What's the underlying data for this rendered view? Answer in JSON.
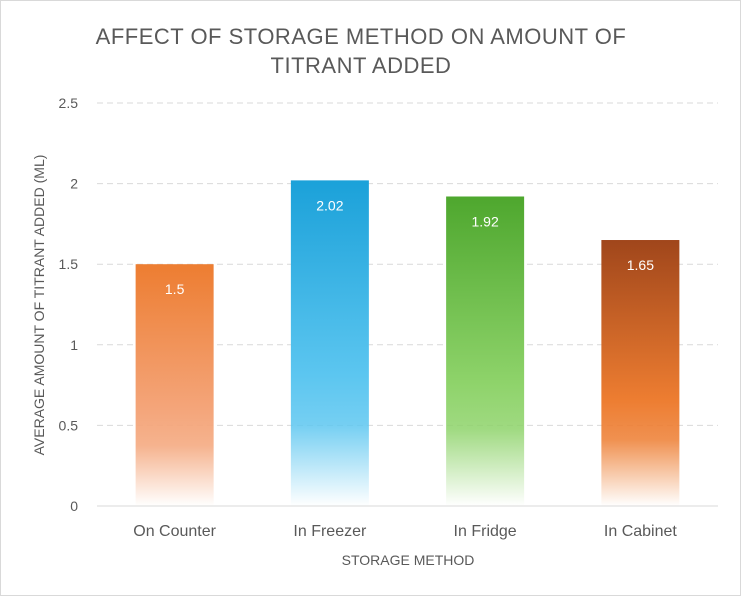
{
  "chart_data": {
    "type": "bar",
    "title_lines": [
      "AFFECT OF STORAGE METHOD ON AMOUNT OF",
      "TITRANT ADDED"
    ],
    "xlabel": "STORAGE METHOD",
    "ylabel": "AVERAGE AMOUNT OF TITRANT ADDED (ML)",
    "categories": [
      "On Counter",
      "In Freezer",
      "In Fridge",
      "In Cabinet"
    ],
    "values": [
      1.5,
      2.02,
      1.92,
      1.65
    ],
    "value_labels": [
      "1.5",
      "2.02",
      "1.92",
      "1.65"
    ],
    "ylim": [
      0,
      2.5
    ],
    "yticks": [
      0,
      0.5,
      1,
      1.5,
      2,
      2.5
    ],
    "ytick_labels": [
      "0",
      "0.5",
      "1",
      "1.5",
      "2",
      "2.5"
    ],
    "grid": true,
    "legend": "none",
    "bar_colors": [
      "#ED7D31",
      "#1BA1D9",
      "#4EA72E",
      "#A0461B"
    ],
    "bar_fade_colors": [
      "#F4A57A",
      "#5CC6F0",
      "#8ED36A",
      "#ED7D31"
    ]
  }
}
